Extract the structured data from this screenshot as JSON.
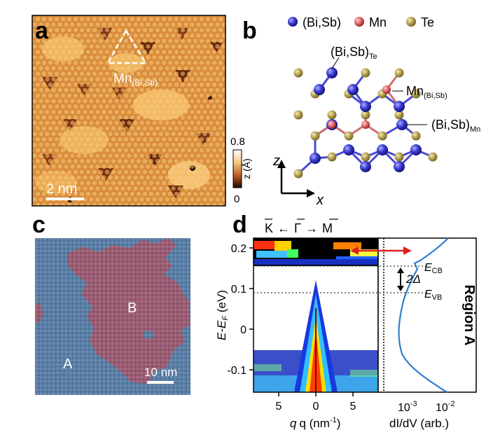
{
  "figure": {
    "panels": {
      "a": {
        "label": "a",
        "annotation_main": "Mn",
        "annotation_sub": "(Bi,Sb)",
        "scalebar": "2 nm",
        "colorbar": {
          "max": "0.8",
          "min": "0",
          "label": "z (Å)"
        }
      },
      "b": {
        "label": "b",
        "legend": [
          {
            "name": "(Bi,Sb)",
            "color": "#4444dd"
          },
          {
            "name": "Mn",
            "color": "#e07070"
          },
          {
            "name": "Te",
            "color": "#b8a455"
          }
        ],
        "callouts": [
          {
            "main": "(Bi,Sb)",
            "sub": "Te"
          },
          {
            "main": "Mn",
            "sub": "(Bi,Sb)"
          },
          {
            "main": "(Bi,Sb)",
            "sub": "Mn"
          }
        ],
        "axes": {
          "z": "z",
          "x": "x"
        }
      },
      "c": {
        "label": "c",
        "region_a": "A",
        "region_b": "B",
        "scalebar": "10 nm"
      },
      "d": {
        "label": "d",
        "path": {
          "k": "K",
          "g": "Γ",
          "m": "M",
          "arrow": "←",
          "arrow2": "→"
        },
        "ylabel": "E-E",
        "ylabel_sub": "F",
        "ylabel_unit": " (eV)",
        "yticks": [
          "0.2",
          "0.1",
          "0",
          "-0.1"
        ],
        "xticks_left": [
          "5",
          "0",
          "5"
        ],
        "xlabel_left": "q (nm",
        "xlabel_left_sup": "-1",
        "xlabel_left_end": ")",
        "xticks_right": [
          {
            "base": "10",
            "exp": "-3"
          },
          {
            "base": "10",
            "exp": "-2"
          }
        ],
        "xlabel_right": "dI/dV (arb.)",
        "e_cb": "E",
        "e_cb_sub": "CB",
        "e_vb": "E",
        "e_vb_sub": "VB",
        "gap": "2Δ",
        "region_title": "Region A"
      }
    }
  }
}
